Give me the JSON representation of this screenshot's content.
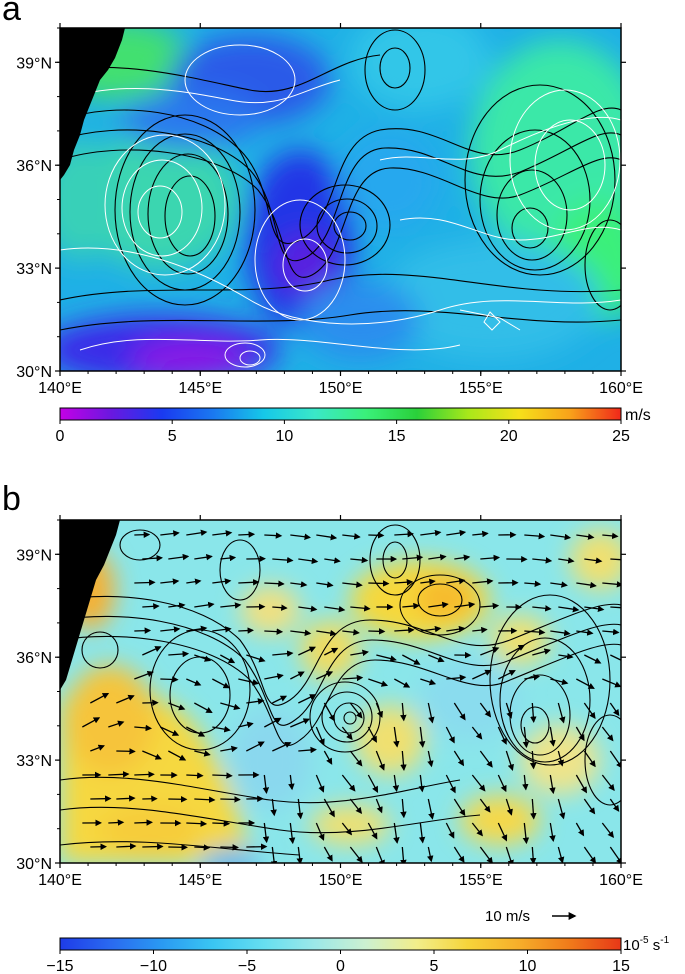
{
  "panels": [
    {
      "label": "a",
      "lat_ticks": [
        "39°N",
        "36°N",
        "33°N",
        "30°N"
      ],
      "lon_ticks": [
        "140°E",
        "145°E",
        "150°E",
        "155°E",
        "160°E"
      ],
      "colorbar": {
        "unit": "m/s",
        "ticks": [
          "0",
          "5",
          "10",
          "15",
          "20",
          "25"
        ],
        "colors": [
          "#c400e6",
          "#6a18e0",
          "#1a3af0",
          "#1a78f0",
          "#16c8e8",
          "#3ae8c8",
          "#3af07a",
          "#2ad03a",
          "#a8e81a",
          "#f6e01a",
          "#f8a21a",
          "#f0281a"
        ]
      }
    },
    {
      "label": "b",
      "lat_ticks": [
        "39°N",
        "36°N",
        "33°N",
        "30°N"
      ],
      "lon_ticks": [
        "140°E",
        "145°E",
        "150°E",
        "155°E",
        "160°E"
      ],
      "vector_scale_label": "10 m/s",
      "colorbar": {
        "unit_base": "10",
        "unit_exp": "-5",
        "unit_suffix": " s",
        "unit_suffix_exp": "-1",
        "ticks": [
          "−15",
          "−10",
          "−5",
          "0",
          "5",
          "10",
          "15"
        ],
        "colors": [
          "#1e3ce8",
          "#2a6af0",
          "#2a9af2",
          "#3ac6f2",
          "#66def0",
          "#9ce8e8",
          "#ccf0d0",
          "#f2ee8a",
          "#f6d43a",
          "#f6ae2a",
          "#f07a1a",
          "#e83818"
        ]
      }
    }
  ],
  "colors": {
    "land": "#000000",
    "contour_black": "#000000",
    "contour_white": "#ffffff"
  }
}
